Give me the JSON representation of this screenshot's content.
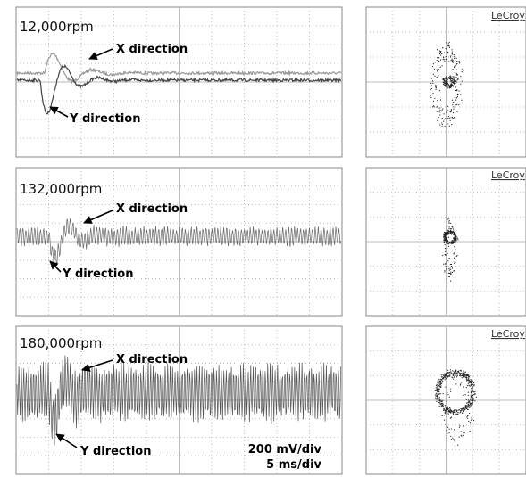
{
  "panels": [
    {
      "speed": "12,000rpm",
      "x_label": "X direction",
      "y_label": "Y direction",
      "brand": "LeCroy"
    },
    {
      "speed": "132,000rpm",
      "x_label": "X direction",
      "y_label": "Y direction",
      "brand": "LeCroy"
    },
    {
      "speed": "180,000rpm",
      "x_label": "X direction",
      "y_label": "Y direction",
      "brand": "LeCroy"
    }
  ],
  "scale": {
    "volts": "200 mV/div",
    "time": "5 ms/div"
  }
}
